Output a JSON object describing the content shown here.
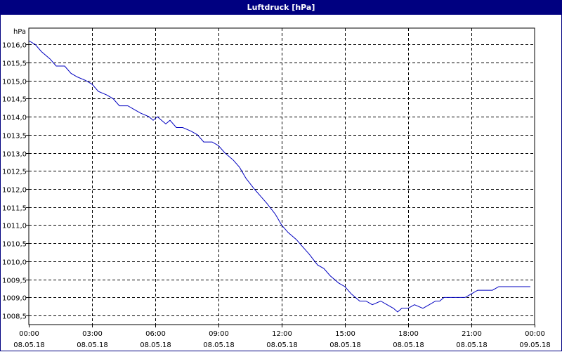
{
  "window": {
    "title": "Luftdruck [hPa]"
  },
  "chart_data": {
    "type": "line",
    "title": "Luftdruck [hPa]",
    "ylabel": "hPa",
    "xlabel": "",
    "ylim": [
      1008.25,
      1016.45
    ],
    "xlim_hours": [
      0,
      24
    ],
    "grid": true,
    "grid_style": "dashed",
    "line_color": "#0000c0",
    "y_ticks": [
      "1016,0",
      "1015,5",
      "1015,0",
      "1014,5",
      "1014,0",
      "1013,5",
      "1013,0",
      "1012,5",
      "1012,0",
      "1011,5",
      "1011,0",
      "1010,5",
      "1010,0",
      "1009,5",
      "1009,0",
      "1008,5"
    ],
    "y_tick_values": [
      1016.0,
      1015.5,
      1015.0,
      1014.5,
      1014.0,
      1013.5,
      1013.0,
      1012.5,
      1012.0,
      1011.5,
      1011.0,
      1010.5,
      1010.0,
      1009.5,
      1009.0,
      1008.5
    ],
    "x_ticks": [
      {
        "time": "00:00",
        "date": "08.05.18",
        "hour": 0
      },
      {
        "time": "03:00",
        "date": "08.05.18",
        "hour": 3
      },
      {
        "time": "06:00",
        "date": "08.05.18",
        "hour": 6
      },
      {
        "time": "09:00",
        "date": "08.05.18",
        "hour": 9
      },
      {
        "time": "12:00",
        "date": "08.05.18",
        "hour": 12
      },
      {
        "time": "15:00",
        "date": "08.05.18",
        "hour": 15
      },
      {
        "time": "18:00",
        "date": "08.05.18",
        "hour": 18
      },
      {
        "time": "21:00",
        "date": "08.05.18",
        "hour": 21
      },
      {
        "time": "00:00",
        "date": "09.05.18",
        "hour": 24
      }
    ],
    "series": [
      {
        "x_hours": [
          0,
          0.3,
          0.6,
          1.0,
          1.3,
          1.7,
          2.0,
          2.3,
          2.7,
          3.0,
          3.3,
          3.7,
          4.0,
          4.3,
          4.7,
          5.0,
          5.3,
          5.7,
          5.9,
          6.1,
          6.3,
          6.5,
          6.7,
          7.0,
          7.3,
          7.7,
          8.0,
          8.3,
          8.7,
          9.0,
          9.3,
          9.7,
          10.0,
          10.3,
          10.7,
          11.0,
          11.3,
          11.7,
          12.0,
          12.3,
          12.7,
          13.0,
          13.3,
          13.7,
          14.0,
          14.3,
          14.7,
          15.0,
          15.3,
          15.7,
          16.0,
          16.3,
          16.7,
          17.0,
          17.3,
          17.5,
          17.7,
          18.0,
          18.3,
          18.7,
          19.0,
          19.3,
          19.5,
          19.7,
          20.0,
          20.3,
          20.7,
          21.0,
          21.3,
          21.7,
          22.0,
          22.3,
          22.7,
          23.0,
          23.3,
          23.8
        ],
        "values": [
          1016.1,
          1016.0,
          1015.8,
          1015.6,
          1015.4,
          1015.4,
          1015.2,
          1015.1,
          1015.0,
          1014.9,
          1014.7,
          1014.6,
          1014.5,
          1014.3,
          1014.3,
          1014.2,
          1014.1,
          1014.0,
          1013.9,
          1014.0,
          1013.9,
          1013.8,
          1013.9,
          1013.7,
          1013.7,
          1013.6,
          1013.5,
          1013.3,
          1013.3,
          1013.2,
          1013.0,
          1012.8,
          1012.6,
          1012.3,
          1012.0,
          1011.8,
          1011.6,
          1011.3,
          1011.0,
          1010.8,
          1010.6,
          1010.4,
          1010.2,
          1009.9,
          1009.8,
          1009.6,
          1009.4,
          1009.3,
          1009.1,
          1008.9,
          1008.9,
          1008.8,
          1008.9,
          1008.8,
          1008.7,
          1008.6,
          1008.7,
          1008.7,
          1008.8,
          1008.7,
          1008.8,
          1008.9,
          1008.9,
          1009.0,
          1009.0,
          1009.0,
          1009.0,
          1009.1,
          1009.2,
          1009.2,
          1009.2,
          1009.3,
          1009.3,
          1009.3,
          1009.3,
          1009.3
        ]
      }
    ]
  }
}
